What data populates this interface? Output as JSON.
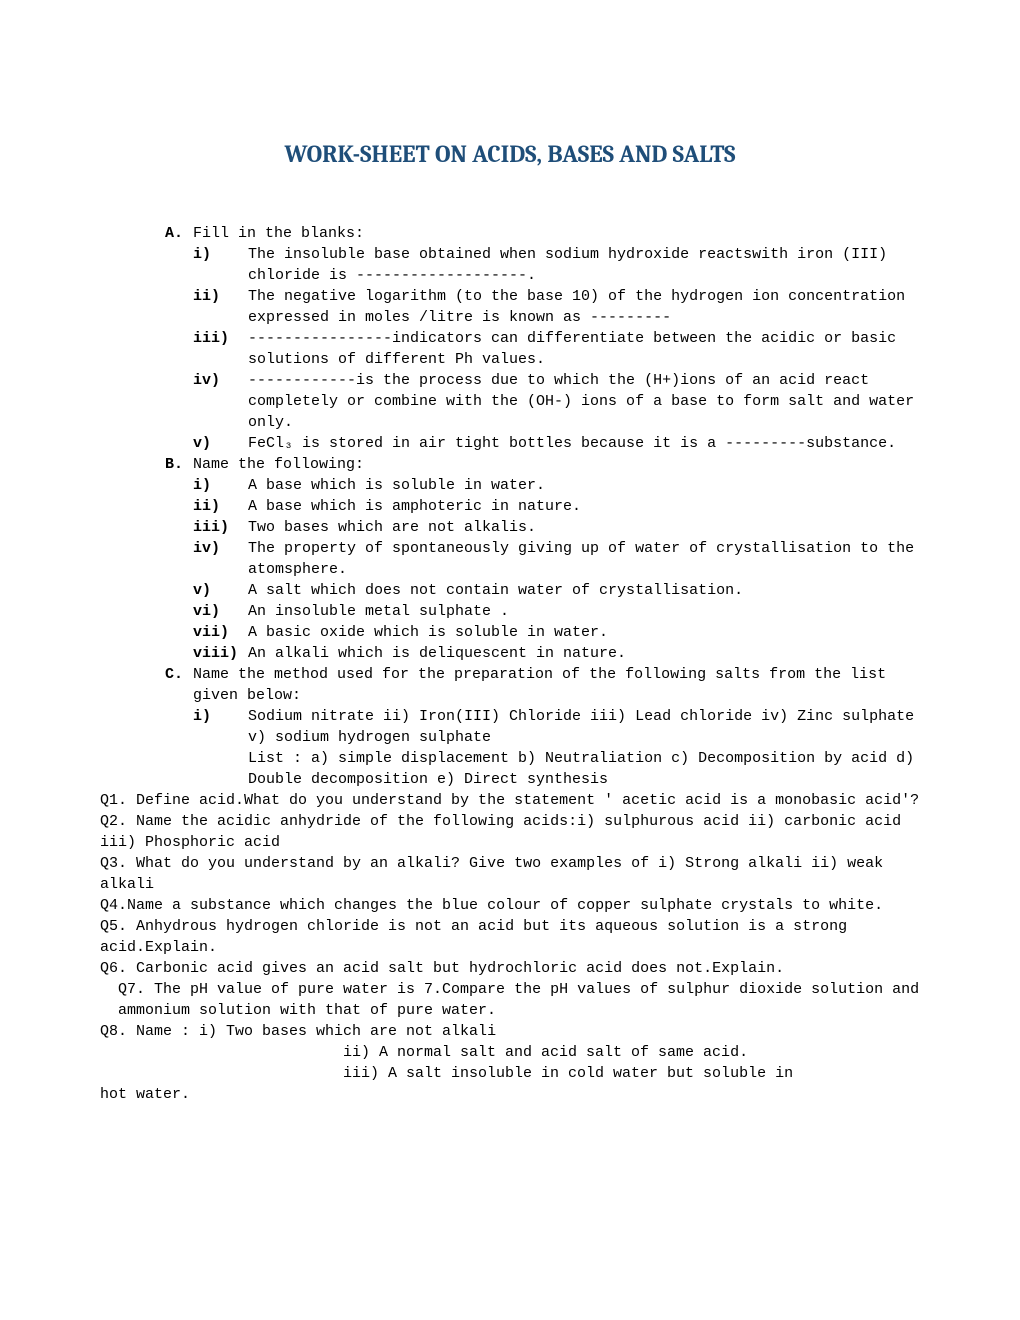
{
  "title": "WORK-SHEET ON ACIDS, BASES AND SALTS",
  "sections": {
    "A": {
      "marker": "A.",
      "label": "Fill in the blanks:",
      "items": [
        {
          "m": "i)",
          "t": "The insoluble base obtained when sodium hydroxide reactswith iron (III) chloride is -------------------."
        },
        {
          "m": "ii)",
          "t": "The negative logarithm (to the base 10) of the hydrogen ion concentration expressed in moles /litre is known as ---------"
        },
        {
          "m": "iii)",
          "t": "----------------indicators can differentiate between the acidic or basic solutions of different Ph values."
        },
        {
          "m": "iv)",
          "t": "------------is the process due to which the (H+)ions of an acid react completely or combine with the (OH-) ions of a base to form salt and water only."
        },
        {
          "m": "v)",
          "t": "FeCl₃ is stored in air tight bottles because it is a ---------substance."
        }
      ]
    },
    "B": {
      "marker": "B.",
      "label": "Name  the following:",
      "items": [
        {
          "m": "i)",
          "t": "A base which is soluble in water."
        },
        {
          "m": "ii)",
          "t": "A base which is amphoteric in nature."
        },
        {
          "m": "iii)",
          "t": "Two bases which are not alkalis."
        },
        {
          "m": "iv)",
          "t": "The property of spontaneously giving up of water of crystallisation to the atomsphere."
        },
        {
          "m": "v)",
          "t": "A salt which does not contain water of crystallisation."
        },
        {
          "m": "vi)",
          "t": "An insoluble metal sulphate ."
        },
        {
          "m": "vii)",
          "t": "A basic oxide which is soluble in water."
        },
        {
          "m": "viii)",
          "t": "An alkali which is deliquescent in nature."
        }
      ]
    },
    "C": {
      "marker": "C.",
      "label": "Name the method used for the preparation of the following salts from the list given below:",
      "items": [
        {
          "m": "i)",
          "t": "Sodium nitrate    ii) Iron(III) Chloride     iii) Lead chloride    iv) Zinc sulphate   v) sodium hydrogen sulphate"
        }
      ],
      "list": "List :  a) simple displacement   b) Neutraliation   c) Decomposition by acid   d) Double decomposition  e) Direct synthesis"
    }
  },
  "questions": {
    "q1": "Q1. Define acid.What do you understand by the statement ' acetic acid is a monobasic acid'?",
    "q2": "Q2. Name the acidic anhydride of the following acids:i) sulphurous acid ii) carbonic acid iii) Phosphoric acid",
    "q3": "Q3. What do you understand by an alkali? Give two examples of i) Strong alkali ii) weak alkali",
    "q4": "Q4.Name a substance which changes the blue colour of copper sulphate crystals to white.",
    "q5": "Q5. Anhydrous hydrogen chloride is not an acid but its aqueous solution is a strong acid.Explain.",
    "q6": "Q6. Carbonic acid gives an acid salt but hydrochloric acid does not.Explain.",
    "q7": "Q7. The pH value of pure water is 7.Compare the pH values of sulphur dioxide solution and ammonium solution with that of pure water.",
    "q8": "Q8. Name : i) Two bases which are  not alkali",
    "q8b": "ii) A normal salt and acid salt of same acid.",
    "q8c": "iii) A salt insoluble in cold water but soluble in",
    "q8d": "hot water."
  }
}
